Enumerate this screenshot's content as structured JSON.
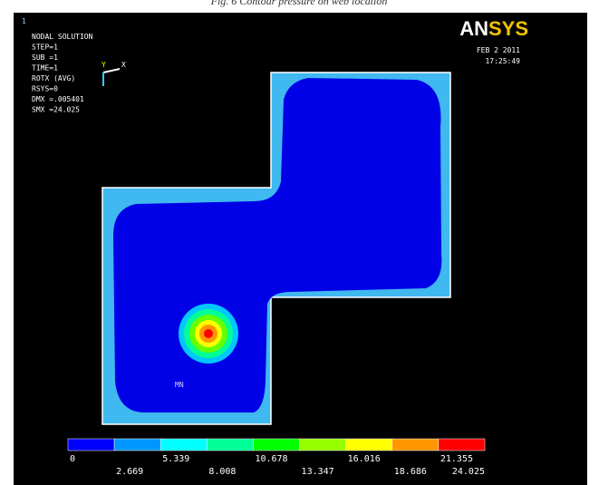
{
  "caption": "Fig. 6 Contour pressure on web location",
  "window_number": "1",
  "info": [
    "NODAL SOLUTION",
    "STEP=1",
    "SUB =1",
    "TIME=1",
    "ROTX      (AVG)",
    "RSYS=0",
    "DMX =.005401",
    "SMX =24.025"
  ],
  "date": "FEB  2 2011",
  "time": "17:25:49",
  "logo": "ANSYS",
  "triad": {
    "y": "Y",
    "x": "X"
  },
  "min_label": "MN",
  "legend": {
    "labels": [
      0,
      2.669,
      5.339,
      8.008,
      10.678,
      13.347,
      16.016,
      18.686,
      21.355,
      24.025
    ],
    "colors": [
      "#0000ff",
      "#0096ff",
      "#00ffff",
      "#00ff96",
      "#00ff00",
      "#96ff00",
      "#ffff00",
      "#ff9600",
      "#ff0000"
    ]
  }
}
